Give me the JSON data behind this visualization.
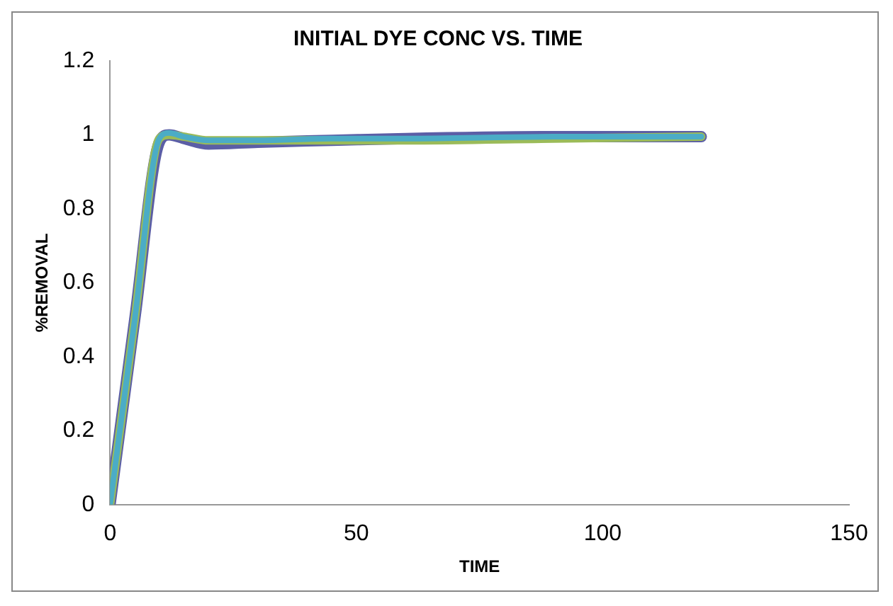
{
  "chart_data": {
    "type": "line",
    "title": "INITIAL DYE CONC VS. TIME",
    "xlabel": "TIME",
    "ylabel": "%REMOVAL",
    "xlim": [
      0,
      150
    ],
    "xticks": [
      0,
      50,
      100,
      150
    ],
    "ylim": [
      0,
      1.2
    ],
    "yticks": [
      0,
      0.2,
      0.4,
      0.6,
      0.8,
      1,
      1.2
    ],
    "grid": false,
    "legend": false,
    "marker": "none",
    "series": [
      {
        "color": "#5b5ea6",
        "x": [
          0,
          5,
          10,
          12,
          15,
          20,
          30,
          45,
          60,
          90,
          120
        ],
        "values": [
          0,
          0.5,
          0.98,
          1.0,
          0.99,
          0.975,
          0.98,
          0.985,
          0.99,
          0.995,
          0.995
        ]
      },
      {
        "color": "#9bbb59",
        "x": [
          0,
          5,
          10,
          12,
          15,
          20,
          30,
          45,
          60,
          90,
          120
        ],
        "values": [
          0,
          0.5,
          0.99,
          1.0,
          0.995,
          0.985,
          0.985,
          0.985,
          0.985,
          0.99,
          0.995
        ]
      },
      {
        "color": "#4bacc6",
        "x": [
          0,
          5,
          10,
          12,
          15,
          20,
          30,
          45,
          60,
          90,
          120
        ],
        "values": [
          0,
          0.5,
          0.99,
          1.005,
          0.995,
          0.985,
          0.985,
          0.99,
          0.99,
          0.995,
          0.995
        ]
      }
    ]
  }
}
